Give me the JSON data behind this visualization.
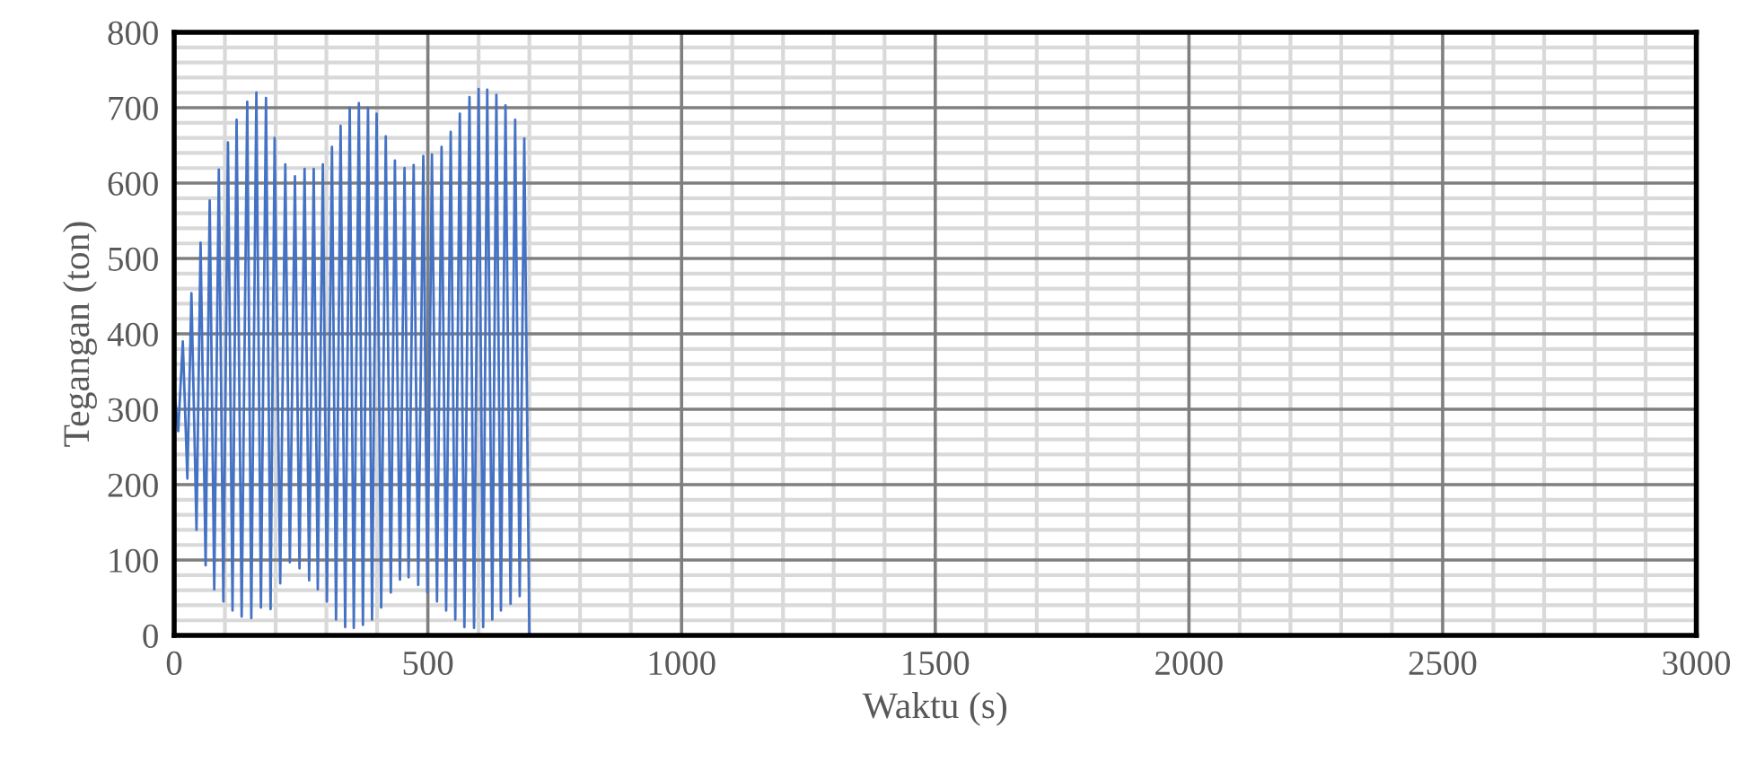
{
  "chart_data": {
    "type": "line",
    "xlabel": "Waktu (s)",
    "ylabel": "Tegangan (ton)",
    "xlim": [
      0,
      3000
    ],
    "xticks": [
      0,
      500,
      1000,
      1500,
      2000,
      2500,
      3000
    ],
    "ylim": [
      0,
      800
    ],
    "yticks": [
      0,
      100,
      200,
      300,
      400,
      500,
      600,
      700,
      800
    ],
    "grid": true,
    "legend": false,
    "marker": "none",
    "line_style": "solid",
    "series": [
      {
        "color": "#4472c4",
        "x": [
          0,
          8,
          17,
          26,
          34,
          44,
          52,
          62,
          70,
          79,
          88,
          97,
          106,
          115,
          123,
          133,
          144,
          152,
          162,
          171,
          181,
          190,
          198,
          209,
          219,
          228,
          238,
          247,
          257,
          266,
          275,
          283,
          293,
          301,
          311,
          319,
          328,
          337,
          346,
          354,
          364,
          372,
          382,
          390,
          399,
          408,
          417,
          427,
          435,
          445,
          454,
          462,
          472,
          481,
          491,
          499,
          508,
          518,
          527,
          536,
          545,
          554,
          563,
          572,
          582,
          591,
          600,
          609,
          617,
          627,
          635,
          644,
          653,
          663,
          672,
          681,
          690,
          699,
          700,
          3000
        ],
        "values": [
          327,
          271,
          390,
          208,
          454,
          140,
          521,
          93,
          577,
          61,
          618,
          45,
          654,
          33,
          684,
          25,
          708,
          23,
          720,
          37,
          713,
          35,
          660,
          69,
          625,
          97,
          609,
          89,
          619,
          73,
          619,
          61,
          625,
          45,
          648,
          21,
          676,
          11,
          700,
          10,
          706,
          14,
          700,
          21,
          692,
          37,
          662,
          57,
          630,
          74,
          620,
          77,
          624,
          67,
          636,
          57,
          638,
          45,
          648,
          33,
          668,
          21,
          692,
          11,
          714,
          10,
          725,
          11,
          724,
          21,
          717,
          33,
          703,
          42,
          684,
          52,
          659,
          73,
          0,
          0
        ]
      }
    ]
  }
}
